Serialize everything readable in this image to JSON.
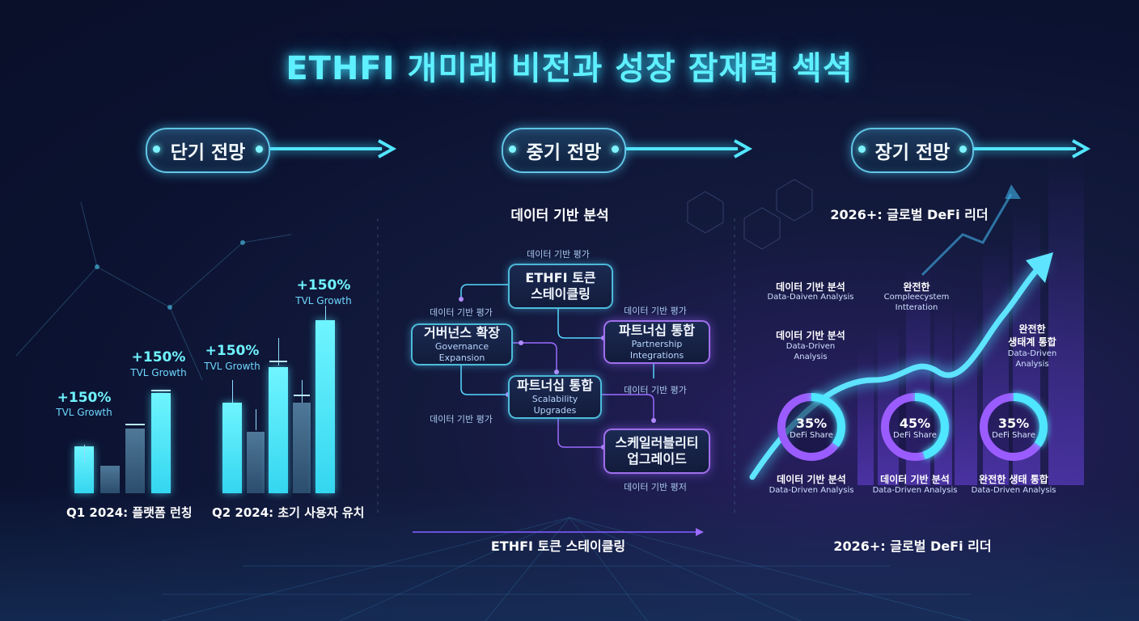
{
  "title": "ETHFI 개미래 비전과 성장 잠재력 섹셕",
  "phases": [
    {
      "label": "단기 전망"
    },
    {
      "label": "중기 전망"
    },
    {
      "label": "장기 전망"
    }
  ],
  "short_term": {
    "chart1": {
      "caption": "Q1 2024: 플랫폼 런칭",
      "annotations": [
        {
          "pct": "+150%",
          "sub": "TVL Growth"
        },
        {
          "pct": "+150%",
          "sub": "TVL Growth"
        }
      ]
    },
    "chart2": {
      "caption": "Q2 2024: 초기 사용자 유치",
      "annotations": [
        {
          "pct": "+150%",
          "sub": "TVL Growth"
        },
        {
          "pct": "+150%",
          "sub": "TVL Growth"
        }
      ]
    }
  },
  "mid_term": {
    "heading": "데이터 기반 분석",
    "footer": "ETHFI 토큰 스테이클링",
    "nodes": {
      "staking": {
        "line1": "ETHFI 토큰",
        "line2": "스테이클링"
      },
      "governance": {
        "line1": "거버넌스 확장",
        "line2": "Governance Expansion"
      },
      "partnership": {
        "line1": "파트너십 통합",
        "line2": "Partnership Integrations"
      },
      "scalability": {
        "line1": "파트너십 통합",
        "line2": "Scalability Upgrades"
      },
      "upgrade": {
        "line1": "스케일러블리티",
        "line2": "업그레이드"
      }
    },
    "labels": {
      "top": "데이터 기반 평가",
      "left1": "데이터 기반 평가",
      "right1": "데이터 기반 평가",
      "right2": "데이터 기반 평가",
      "left2": "데이터 기반 평가",
      "bottom": "데이터 기반 평저"
    }
  },
  "long_term": {
    "heading": "2026+: 글로벌 DeFi 리더",
    "footer": "2026+: 글로벌 DeFi 리더",
    "labels": {
      "a_title": "데이터 기반 분석",
      "a_sub": "Data-Daiven Analysis",
      "b_title": "완전한",
      "b_sub1": "Compleecystem",
      "b_sub2": "Intteration",
      "c_title": "데이터 기반 분석",
      "c_sub1": "Data-Driven",
      "c_sub2": "Analysis",
      "d_title1": "완전한",
      "d_title2": "생태계 통합",
      "d_sub1": "Data-Driven",
      "d_sub2": "Analysis"
    },
    "donuts": [
      {
        "pct": "35%",
        "sub": "DeFi Share",
        "value": 0.35,
        "caption_title": "데이터 기반 분석",
        "caption_sub": "Data-Driven Analysis"
      },
      {
        "pct": "45%",
        "sub": "DeFi Share",
        "value": 0.45,
        "caption_title": "데이터 기반 분석",
        "caption_sub": "Data-Driven Analysis"
      },
      {
        "pct": "35%",
        "sub": "DeFi Share",
        "value": 0.35,
        "caption_title": "완전한 생태 통합",
        "caption_sub": "Data-Driven Analysis"
      }
    ]
  },
  "colors": {
    "cyan": "#4fe6ff",
    "purple": "#9b5cff",
    "bar_slate": "#3b6384"
  }
}
